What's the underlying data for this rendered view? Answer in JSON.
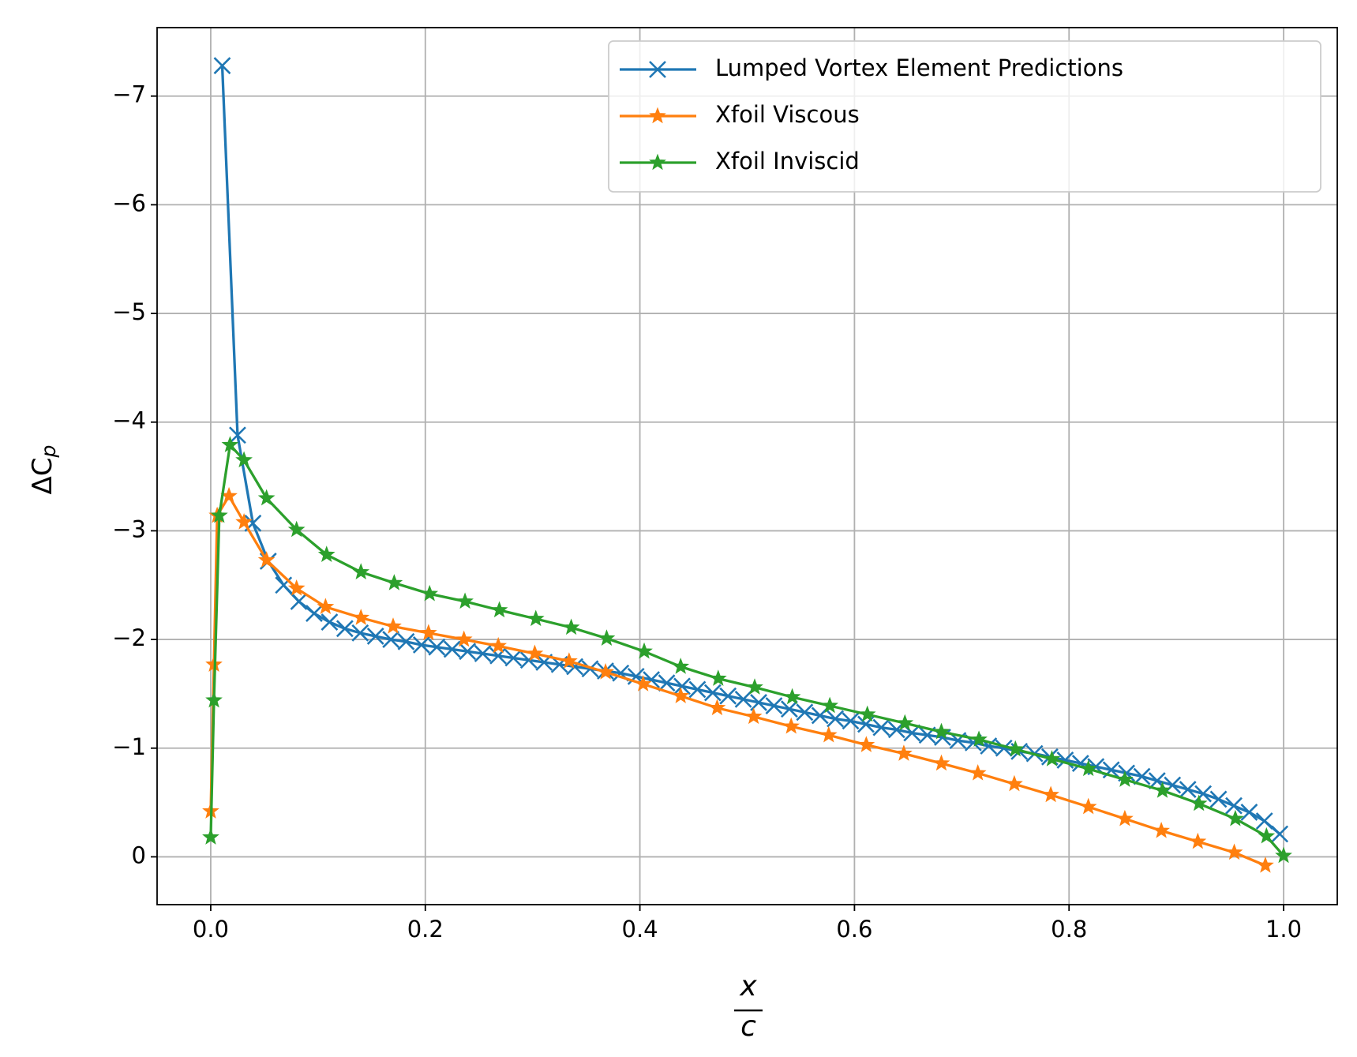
{
  "chart_data": {
    "type": "line",
    "xlabel": [
      "x",
      "c"
    ],
    "ylabel": [
      "ΔC",
      "p"
    ],
    "xlim": [
      -0.05,
      1.05
    ],
    "ylim": [
      0.44,
      -7.63
    ],
    "xticks": [
      {
        "value": 0,
        "label": "0.0"
      },
      0.2,
      0.4,
      0.6,
      0.8,
      {
        "value": 1,
        "label": "1.0"
      }
    ],
    "yticks": [
      {
        "value": -7,
        "label": "−7"
      },
      {
        "value": -6,
        "label": "−6"
      },
      {
        "value": -5,
        "label": "−5"
      },
      {
        "value": -4,
        "label": "−4"
      },
      {
        "value": -3,
        "label": "−3"
      },
      {
        "value": -2,
        "label": "−2"
      },
      {
        "value": -1,
        "label": "−1"
      },
      0
    ],
    "grid": true,
    "legend": "upper right",
    "series": [
      {
        "name": "Lumped Vortex Element Predictions",
        "color": "#1f77b4",
        "marker": "x",
        "x": [
          0.0107,
          0.025,
          0.0393,
          0.0536,
          0.0679,
          0.0821,
          0.0964,
          0.1107,
          0.125,
          0.1393,
          0.1536,
          0.1679,
          0.1821,
          0.1964,
          0.2107,
          0.225,
          0.2393,
          0.2536,
          0.2679,
          0.2821,
          0.2964,
          0.3107,
          0.325,
          0.3393,
          0.3536,
          0.3679,
          0.3821,
          0.3964,
          0.4107,
          0.425,
          0.4393,
          0.4536,
          0.4679,
          0.4821,
          0.4964,
          0.5107,
          0.525,
          0.5393,
          0.5536,
          0.5679,
          0.5821,
          0.5964,
          0.6107,
          0.625,
          0.6393,
          0.6536,
          0.6679,
          0.6821,
          0.6964,
          0.7107,
          0.725,
          0.7393,
          0.7536,
          0.7679,
          0.7821,
          0.7964,
          0.8107,
          0.825,
          0.8393,
          0.8536,
          0.8679,
          0.8821,
          0.8964,
          0.9107,
          0.925,
          0.9393,
          0.9536,
          0.9679,
          0.9821,
          0.9964
        ],
        "values": [
          -7.28,
          -3.88,
          -3.07,
          -2.72,
          -2.5,
          -2.35,
          -2.24,
          -2.16,
          -2.1,
          -2.06,
          -2.03,
          -2.0,
          -1.98,
          -1.95,
          -1.93,
          -1.91,
          -1.89,
          -1.87,
          -1.85,
          -1.83,
          -1.81,
          -1.79,
          -1.77,
          -1.75,
          -1.73,
          -1.71,
          -1.69,
          -1.66,
          -1.63,
          -1.6,
          -1.57,
          -1.54,
          -1.51,
          -1.48,
          -1.45,
          -1.42,
          -1.39,
          -1.36,
          -1.33,
          -1.3,
          -1.27,
          -1.25,
          -1.22,
          -1.19,
          -1.17,
          -1.14,
          -1.12,
          -1.1,
          -1.07,
          -1.05,
          -1.02,
          -1.0,
          -0.97,
          -0.95,
          -0.92,
          -0.89,
          -0.86,
          -0.83,
          -0.8,
          -0.77,
          -0.74,
          -0.7,
          -0.66,
          -0.62,
          -0.58,
          -0.53,
          -0.47,
          -0.41,
          -0.33,
          -0.21
        ]
      },
      {
        "name": "Xfoil Viscous",
        "color": "#ff7f0e",
        "marker": "*",
        "x": [
          0.0,
          0.003,
          0.006,
          0.017,
          0.031,
          0.052,
          0.08,
          0.107,
          0.14,
          0.17,
          0.203,
          0.236,
          0.268,
          0.302,
          0.334,
          0.368,
          0.403,
          0.438,
          0.472,
          0.506,
          0.541,
          0.576,
          0.611,
          0.646,
          0.681,
          0.715,
          0.749,
          0.783,
          0.818,
          0.852,
          0.886,
          0.92,
          0.954,
          0.983
        ],
        "values": [
          -0.42,
          -1.77,
          -3.14,
          -3.32,
          -3.08,
          -2.73,
          -2.47,
          -2.3,
          -2.2,
          -2.12,
          -2.06,
          -2.0,
          -1.94,
          -1.87,
          -1.8,
          -1.7,
          -1.59,
          -1.48,
          -1.37,
          -1.29,
          -1.2,
          -1.12,
          -1.03,
          -0.95,
          -0.86,
          -0.77,
          -0.67,
          -0.57,
          -0.46,
          -0.35,
          -0.24,
          -0.14,
          -0.04,
          0.08
        ]
      },
      {
        "name": "Xfoil Inviscid",
        "color": "#2ca02c",
        "marker": "*",
        "x": [
          0.0,
          0.003,
          0.008,
          0.018,
          0.031,
          0.052,
          0.08,
          0.108,
          0.14,
          0.171,
          0.204,
          0.237,
          0.269,
          0.303,
          0.336,
          0.369,
          0.404,
          0.438,
          0.473,
          0.507,
          0.542,
          0.577,
          0.612,
          0.647,
          0.681,
          0.716,
          0.75,
          0.784,
          0.818,
          0.852,
          0.887,
          0.921,
          0.955,
          0.984,
          1.0
        ],
        "values": [
          -0.18,
          -1.44,
          -3.14,
          -3.79,
          -3.65,
          -3.3,
          -3.01,
          -2.78,
          -2.62,
          -2.52,
          -2.42,
          -2.35,
          -2.27,
          -2.19,
          -2.11,
          -2.01,
          -1.89,
          -1.75,
          -1.64,
          -1.56,
          -1.47,
          -1.39,
          -1.31,
          -1.23,
          -1.15,
          -1.08,
          -0.99,
          -0.9,
          -0.81,
          -0.71,
          -0.61,
          -0.49,
          -0.35,
          -0.19,
          -0.01
        ]
      }
    ]
  }
}
